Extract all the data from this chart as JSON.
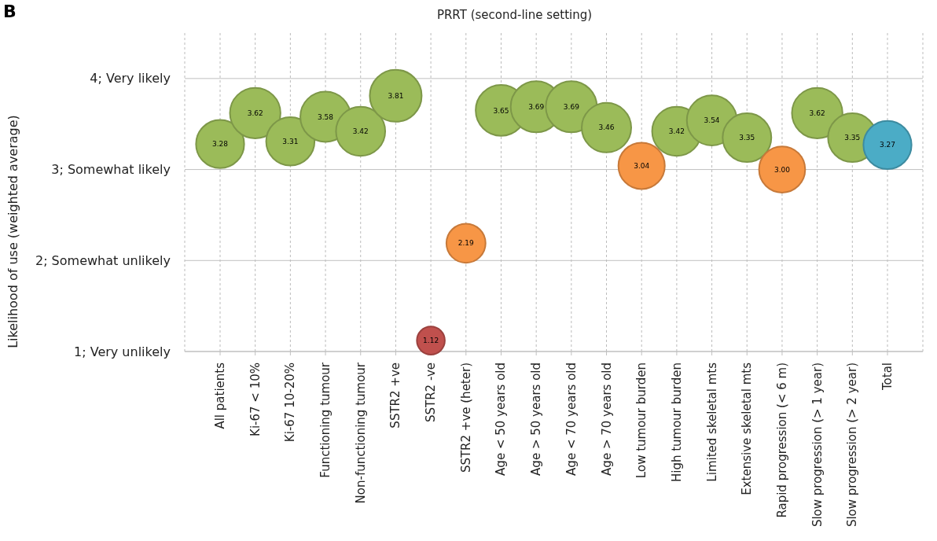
{
  "chart_data": {
    "type": "bubble",
    "title": "PRRT (second-line setting)",
    "ylabel": "Likelihood of use (weighted average)",
    "annotations": [
      "B"
    ],
    "categories": [
      "All patients",
      "Ki-67 < 10%",
      "Ki-67 10-20%",
      "Functioning tumour",
      "Non-functioning tumour",
      "SSTR2 +ve",
      "SSTR2 -ve",
      "SSTR2 +ve (heter)",
      "Age < 50 years old",
      "Age > 50 years old",
      "Age < 70 years old",
      "Age > 70 years old",
      "Low tumour burden",
      "High tumour burden",
      "Limited skeletal mts",
      "Extensive skeletal mts",
      "Rapid progression (< 6 m)",
      "Slow progression (> 1 year)",
      "Slow progression (> 2 year)",
      "Total"
    ],
    "values": [
      3.28,
      3.62,
      3.31,
      3.58,
      3.42,
      3.81,
      1.12,
      2.19,
      3.65,
      3.69,
      3.69,
      3.46,
      3.04,
      3.42,
      3.54,
      3.35,
      3.0,
      3.62,
      3.35,
      3.27
    ],
    "sizes": [
      0.86,
      0.95,
      0.87,
      0.94,
      0.9,
      1,
      0.29,
      0.57,
      0.96,
      0.97,
      0.97,
      0.91,
      0.8,
      0.9,
      0.93,
      0.88,
      0.79,
      0.95,
      0.88,
      0.86
    ],
    "colors": [
      "#9bbb59",
      "#9bbb59",
      "#9bbb59",
      "#9bbb59",
      "#9bbb59",
      "#9bbb59",
      "#c0504d",
      "#f79646",
      "#9bbb59",
      "#9bbb59",
      "#9bbb59",
      "#9bbb59",
      "#f79646",
      "#9bbb59",
      "#9bbb59",
      "#9bbb59",
      "#f79646",
      "#9bbb59",
      "#9bbb59",
      "#4bacc6"
    ],
    "ylim": [
      1,
      4.5
    ],
    "yticks": [
      {
        "value": 1,
        "label": "1; Very unlikely"
      },
      {
        "value": 2,
        "label": "2; Somewhat unlikely"
      },
      {
        "value": 3,
        "label": "3; Somewhat likely"
      },
      {
        "value": 4,
        "label": "4; Very likely"
      }
    ],
    "value_labels": [
      "3.28",
      "3.62",
      "3.31",
      "3.58",
      "3.42",
      "3.81",
      "1.12",
      "2.19",
      "3.65",
      "3.69",
      "3.69",
      "3.46",
      "3.04",
      "3.42",
      "3.54",
      "3.35",
      "3.00",
      "3.62",
      "3.35",
      "3.27"
    ],
    "grid": true
  }
}
